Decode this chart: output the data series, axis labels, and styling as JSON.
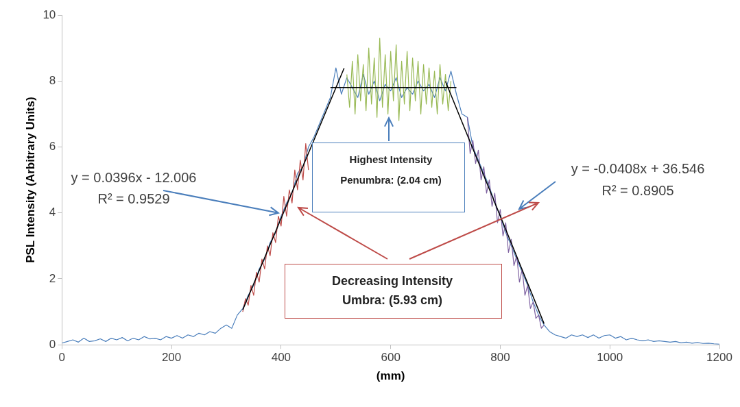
{
  "chart_data": {
    "type": "line",
    "xlabel": "(mm)",
    "ylabel": "PSL Intensity (Arbitrary Units)",
    "xlim": [
      0,
      1200
    ],
    "xticks": [
      0,
      200,
      400,
      600,
      800,
      1000,
      1200
    ],
    "ylim": [
      0,
      10
    ],
    "yticks": [
      0,
      2,
      4,
      6,
      8,
      10
    ],
    "grid": false,
    "legend": false,
    "marker": "none",
    "line_style": "solid",
    "series": [
      {
        "color": "#4a7ebb",
        "x": [
          0,
          10,
          20,
          30,
          40,
          50,
          60,
          70,
          80,
          90,
          100,
          110,
          120,
          130,
          140,
          150,
          160,
          170,
          180,
          190,
          200,
          210,
          220,
          230,
          240,
          250,
          260,
          270,
          280,
          290,
          300,
          310,
          320,
          330,
          340,
          350,
          360,
          370,
          380,
          390,
          400,
          410,
          420,
          430,
          440,
          450,
          460,
          470,
          480,
          490,
          500,
          510,
          520,
          530,
          540,
          550,
          560,
          570,
          580,
          590,
          600,
          610,
          620,
          630,
          640,
          650,
          660,
          670,
          680,
          690,
          700,
          710,
          720,
          730,
          740,
          750,
          760,
          770,
          780,
          790,
          800,
          810,
          820,
          830,
          840,
          850,
          860,
          870,
          880,
          890,
          900,
          910,
          920,
          930,
          940,
          950,
          960,
          970,
          980,
          990,
          1000,
          1010,
          1020,
          1030,
          1040,
          1050,
          1060,
          1070,
          1080,
          1090,
          1100,
          1110,
          1120,
          1130,
          1140,
          1150,
          1160,
          1170,
          1180,
          1190,
          1200
        ],
        "values": [
          0.05,
          0.1,
          0.15,
          0.08,
          0.2,
          0.1,
          0.12,
          0.18,
          0.1,
          0.2,
          0.15,
          0.22,
          0.12,
          0.2,
          0.15,
          0.25,
          0.18,
          0.2,
          0.15,
          0.25,
          0.2,
          0.28,
          0.2,
          0.3,
          0.25,
          0.35,
          0.3,
          0.4,
          0.35,
          0.5,
          0.6,
          0.5,
          0.9,
          1.1,
          1.5,
          1.8,
          2.3,
          2.6,
          3.1,
          3.4,
          3.9,
          4.3,
          4.6,
          5.2,
          5.4,
          6.0,
          6.3,
          6.7,
          7.1,
          7.5,
          8.4,
          7.6,
          8.1,
          7.8,
          7.5,
          8.2,
          7.6,
          8.0,
          7.4,
          7.9,
          7.7,
          8.1,
          7.5,
          7.8,
          7.6,
          8.0,
          7.7,
          7.9,
          7.5,
          8.1,
          7.7,
          8.3,
          7.6,
          7.0,
          6.9,
          6.0,
          5.6,
          5.2,
          4.8,
          4.3,
          3.9,
          3.4,
          3.0,
          2.6,
          2.2,
          1.8,
          1.3,
          0.9,
          0.6,
          0.4,
          0.3,
          0.25,
          0.2,
          0.3,
          0.25,
          0.3,
          0.22,
          0.3,
          0.2,
          0.28,
          0.3,
          0.2,
          0.25,
          0.15,
          0.2,
          0.15,
          0.12,
          0.15,
          0.1,
          0.12,
          0.1,
          0.08,
          0.1,
          0.06,
          0.08,
          0.05,
          0.07,
          0.04,
          0.05,
          0.03,
          0.02
        ]
      },
      {
        "color": "#be4b48",
        "x": [
          330,
          335,
          340,
          345,
          350,
          355,
          360,
          365,
          370,
          375,
          380,
          385,
          390,
          395,
          400,
          405,
          410,
          415,
          420,
          425,
          430,
          435,
          440,
          445,
          450
        ],
        "values": [
          1.0,
          1.4,
          1.2,
          1.8,
          1.5,
          2.2,
          1.9,
          2.6,
          2.3,
          3.0,
          2.7,
          3.4,
          3.1,
          3.9,
          3.6,
          4.5,
          3.9,
          4.7,
          4.3,
          5.3,
          4.7,
          5.6,
          5.0,
          6.1,
          5.3
        ]
      },
      {
        "color": "#98b954",
        "x": [
          520,
          525,
          530,
          535,
          540,
          545,
          550,
          555,
          560,
          565,
          570,
          575,
          580,
          585,
          590,
          595,
          600,
          605,
          610,
          615,
          620,
          625,
          630,
          635,
          640,
          645,
          650,
          655,
          660,
          665,
          670,
          675,
          680,
          685,
          690,
          695,
          700,
          705,
          710
        ],
        "values": [
          8.2,
          7.2,
          8.6,
          7.0,
          8.8,
          7.4,
          8.5,
          7.1,
          9.0,
          7.3,
          8.7,
          6.9,
          9.3,
          7.2,
          8.8,
          7.0,
          8.9,
          7.4,
          9.1,
          6.8,
          8.6,
          7.3,
          8.9,
          7.1,
          8.7,
          7.4,
          8.6,
          7.0,
          8.5,
          7.3,
          8.4,
          7.2,
          8.3,
          7.0,
          8.5,
          7.3,
          8.2,
          7.1,
          8.0
        ]
      },
      {
        "color": "#7d60a0",
        "x": [
          740,
          745,
          750,
          755,
          760,
          765,
          770,
          775,
          780,
          785,
          790,
          795,
          800,
          805,
          810,
          815,
          820,
          825,
          830,
          835,
          840,
          845,
          850,
          855,
          860,
          865,
          870,
          875,
          880
        ],
        "values": [
          6.9,
          5.8,
          6.2,
          5.5,
          5.9,
          5.0,
          5.4,
          4.6,
          5.0,
          4.2,
          4.6,
          3.7,
          4.1,
          3.3,
          3.7,
          2.8,
          3.2,
          2.4,
          2.7,
          1.9,
          2.3,
          1.5,
          1.8,
          1.1,
          1.3,
          0.8,
          0.9,
          0.5,
          0.6
        ]
      },
      {
        "color": "#000000",
        "x": [
          330,
          515
        ],
        "values": [
          1.06,
          8.39
        ]
      },
      {
        "color": "#000000",
        "x": [
          490,
          720
        ],
        "values": [
          7.8,
          7.8
        ]
      },
      {
        "color": "#000000",
        "x": [
          700,
          880
        ],
        "values": [
          7.99,
          0.64
        ]
      }
    ],
    "annotations": [
      {
        "text": "y = 0.0396x - 12.006",
        "x": 400,
        "y": 4
      },
      "R² = 0.9529",
      "y = -0.0408x + 36.546",
      "R² = 0.8905",
      "Highest Intensity",
      "Penumbra:  (2.04 cm)",
      "Decreasing  Intensity",
      "Umbra:  (5.93 cm)"
    ]
  }
}
